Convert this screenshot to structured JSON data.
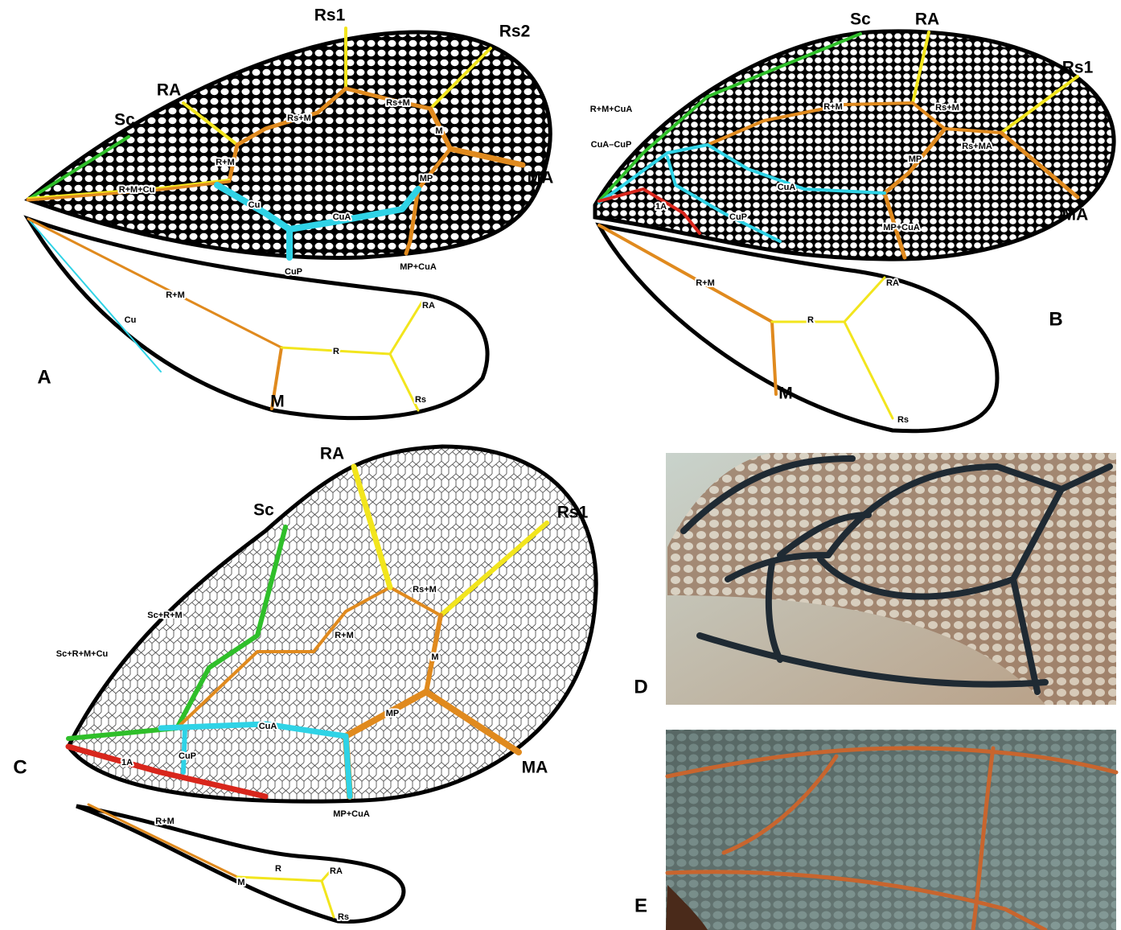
{
  "panels": [
    {
      "letter": "A",
      "forewing_labels": [
        "Sc",
        "RA",
        "Rs1",
        "Rs2",
        "Rs+M",
        "Rs+M",
        "R+M",
        "R+M+Cu",
        "Cu",
        "CuA",
        "CuP",
        "M",
        "MP",
        "MA",
        "MP+CuA"
      ],
      "hindwing_labels": [
        "R+M",
        "Cu",
        "R",
        "RA",
        "Rs",
        "M"
      ]
    },
    {
      "letter": "B",
      "forewing_labels": [
        "Sc",
        "RA",
        "Rs1",
        "R+M+CuA",
        "CuA–CuP",
        "R+M",
        "Rs+M",
        "Rs+MA",
        "MP",
        "CuA",
        "1A",
        "CuP",
        "MP+CuA",
        "MA"
      ],
      "hindwing_labels": [
        "R+M",
        "RA",
        "R",
        "M",
        "Rs"
      ]
    },
    {
      "letter": "C",
      "forewing_labels": [
        "RA",
        "Sc",
        "Rs1",
        "Rs+M",
        "R+M",
        "M",
        "Sc+R+M",
        "Sc+R+M+Cu",
        "CuA",
        "CuP",
        "MP",
        "1A",
        "MA",
        "MP+CuA"
      ],
      "hindwing_labels": [
        "R+M",
        "R",
        "RA",
        "M",
        "Rs"
      ]
    },
    {
      "letter": "D"
    },
    {
      "letter": "E"
    }
  ]
}
